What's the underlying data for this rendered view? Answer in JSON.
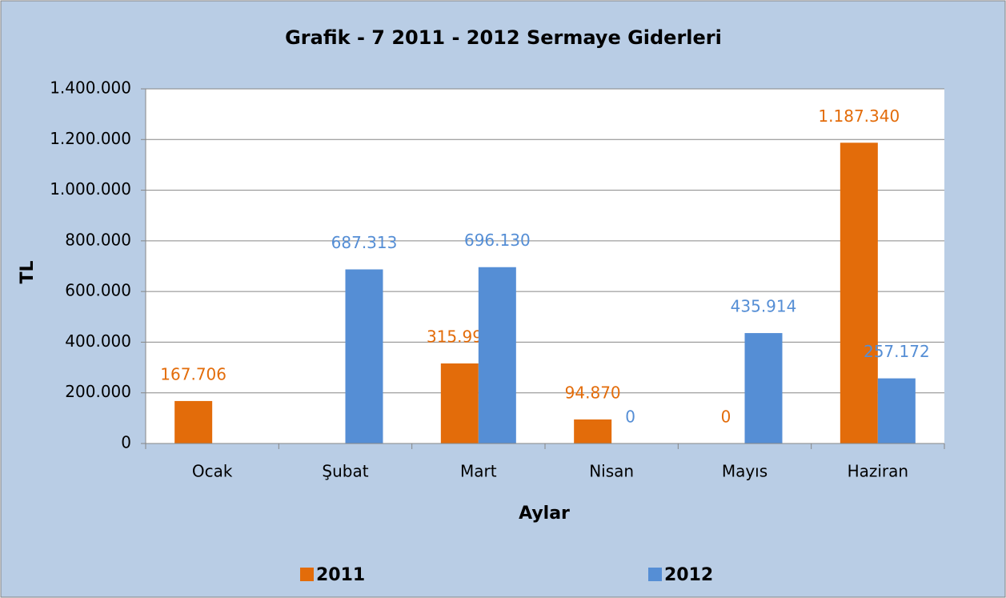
{
  "chart_data": {
    "type": "bar",
    "title": "Grafik - 7  2011 - 2012 Sermaye Giderleri",
    "x_label": "Aylar",
    "y_label": "TL",
    "categories": [
      "Ocak",
      "Şubat",
      "Mart",
      "Nisan",
      "Mayıs",
      "Haziran"
    ],
    "series": [
      {
        "name": "2011",
        "color": "#e36c0a",
        "values": [
          167706,
          null,
          315993,
          94870,
          0,
          1187340
        ],
        "value_labels": [
          "167.706",
          null,
          "315.993",
          "94.870",
          "0",
          "1.187.340"
        ]
      },
      {
        "name": "2012",
        "color": "#558ed5",
        "values": [
          null,
          687313,
          696130,
          0,
          435914,
          257172
        ],
        "value_labels": [
          null,
          "687.313",
          "696.130",
          "0",
          "435.914",
          "257.172"
        ]
      }
    ],
    "ylim": [
      0,
      1400000
    ],
    "yticks": [
      0,
      {
        "value": 200000,
        "label": "200.000"
      },
      {
        "value": 400000,
        "label": "400.000"
      },
      {
        "value": 600000,
        "label": "600.000"
      },
      {
        "value": 800000,
        "label": "800.000"
      },
      {
        "value": 1000000,
        "label": "1.000.000"
      },
      {
        "value": 1200000,
        "label": "1.200.000"
      },
      {
        "value": 1400000,
        "label": "1.400.000"
      }
    ],
    "grid": true,
    "legend": "bottom"
  }
}
